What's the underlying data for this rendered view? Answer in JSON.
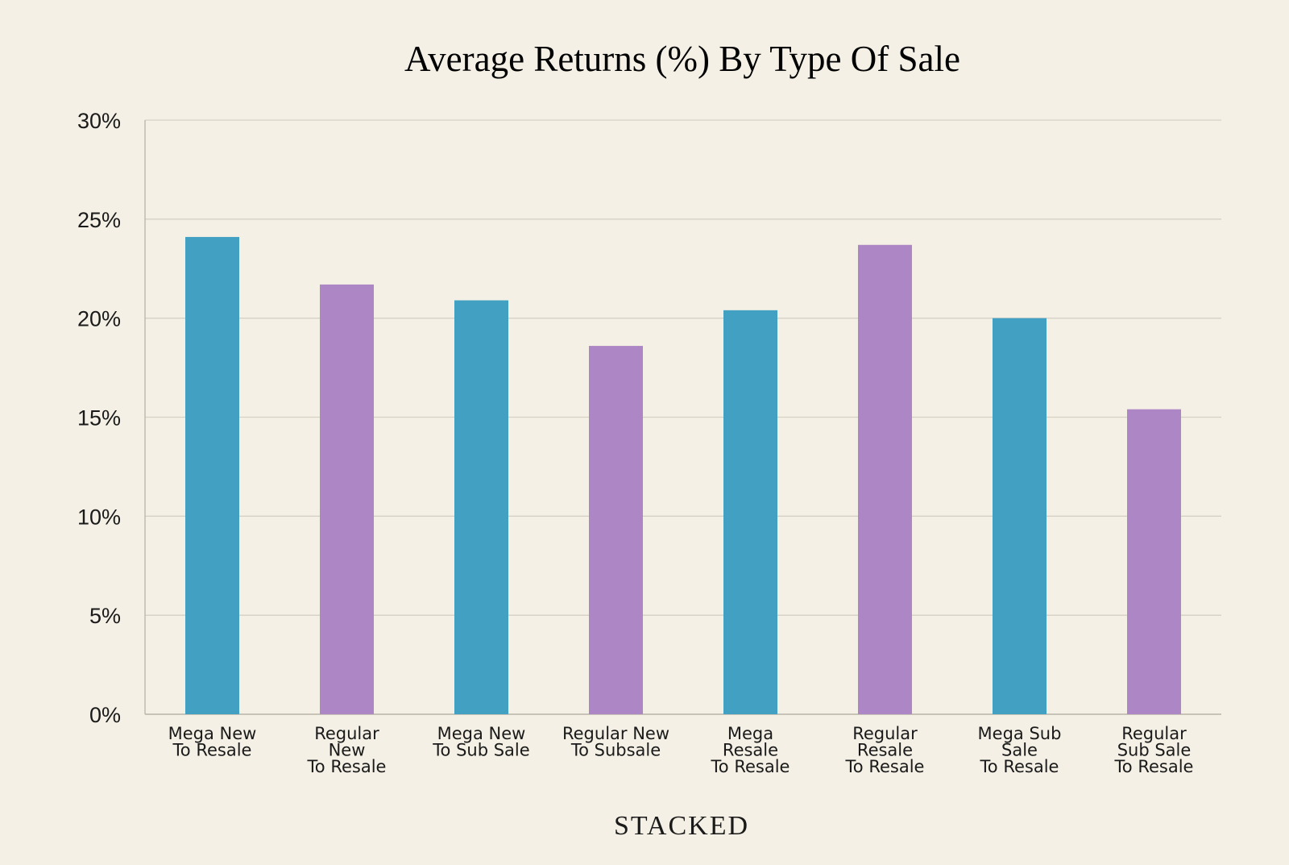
{
  "chart_data": {
    "type": "bar",
    "title": "Average Returns (%) By Type Of Sale",
    "xlabel": "",
    "ylabel": "",
    "ylim": [
      0,
      30
    ],
    "yticks": [
      "0%",
      "5%",
      "10%",
      "15%",
      "20%",
      "25%",
      "30%"
    ],
    "yticks_values": [
      0,
      5,
      10,
      15,
      20,
      25,
      30
    ],
    "grid": true,
    "categories": [
      [
        "Mega New",
        "To Resale"
      ],
      [
        "Regular",
        "New",
        "To Resale"
      ],
      [
        "Mega New",
        "To Sub Sale"
      ],
      [
        "Regular New",
        "To Subsale"
      ],
      [
        "Mega",
        "Resale",
        "To Resale"
      ],
      [
        "Regular",
        "Resale",
        "To Resale"
      ],
      [
        "Mega Sub",
        "Sale",
        "To Resale"
      ],
      [
        "Regular",
        "Sub Sale",
        "To Resale"
      ]
    ],
    "values": [
      24.1,
      21.7,
      20.9,
      18.6,
      20.4,
      23.7,
      20.0,
      15.4
    ],
    "colors": [
      "#42a0c2",
      "#ad87c5",
      "#42a0c2",
      "#ad87c5",
      "#42a0c2",
      "#ad87c5",
      "#42a0c2",
      "#ad87c5"
    ]
  },
  "brand": "STACKED",
  "colors": {
    "background": "#f4f0e5",
    "mega": "#42a0c2",
    "regular": "#ad87c5",
    "grid": "#d6d1c4"
  }
}
